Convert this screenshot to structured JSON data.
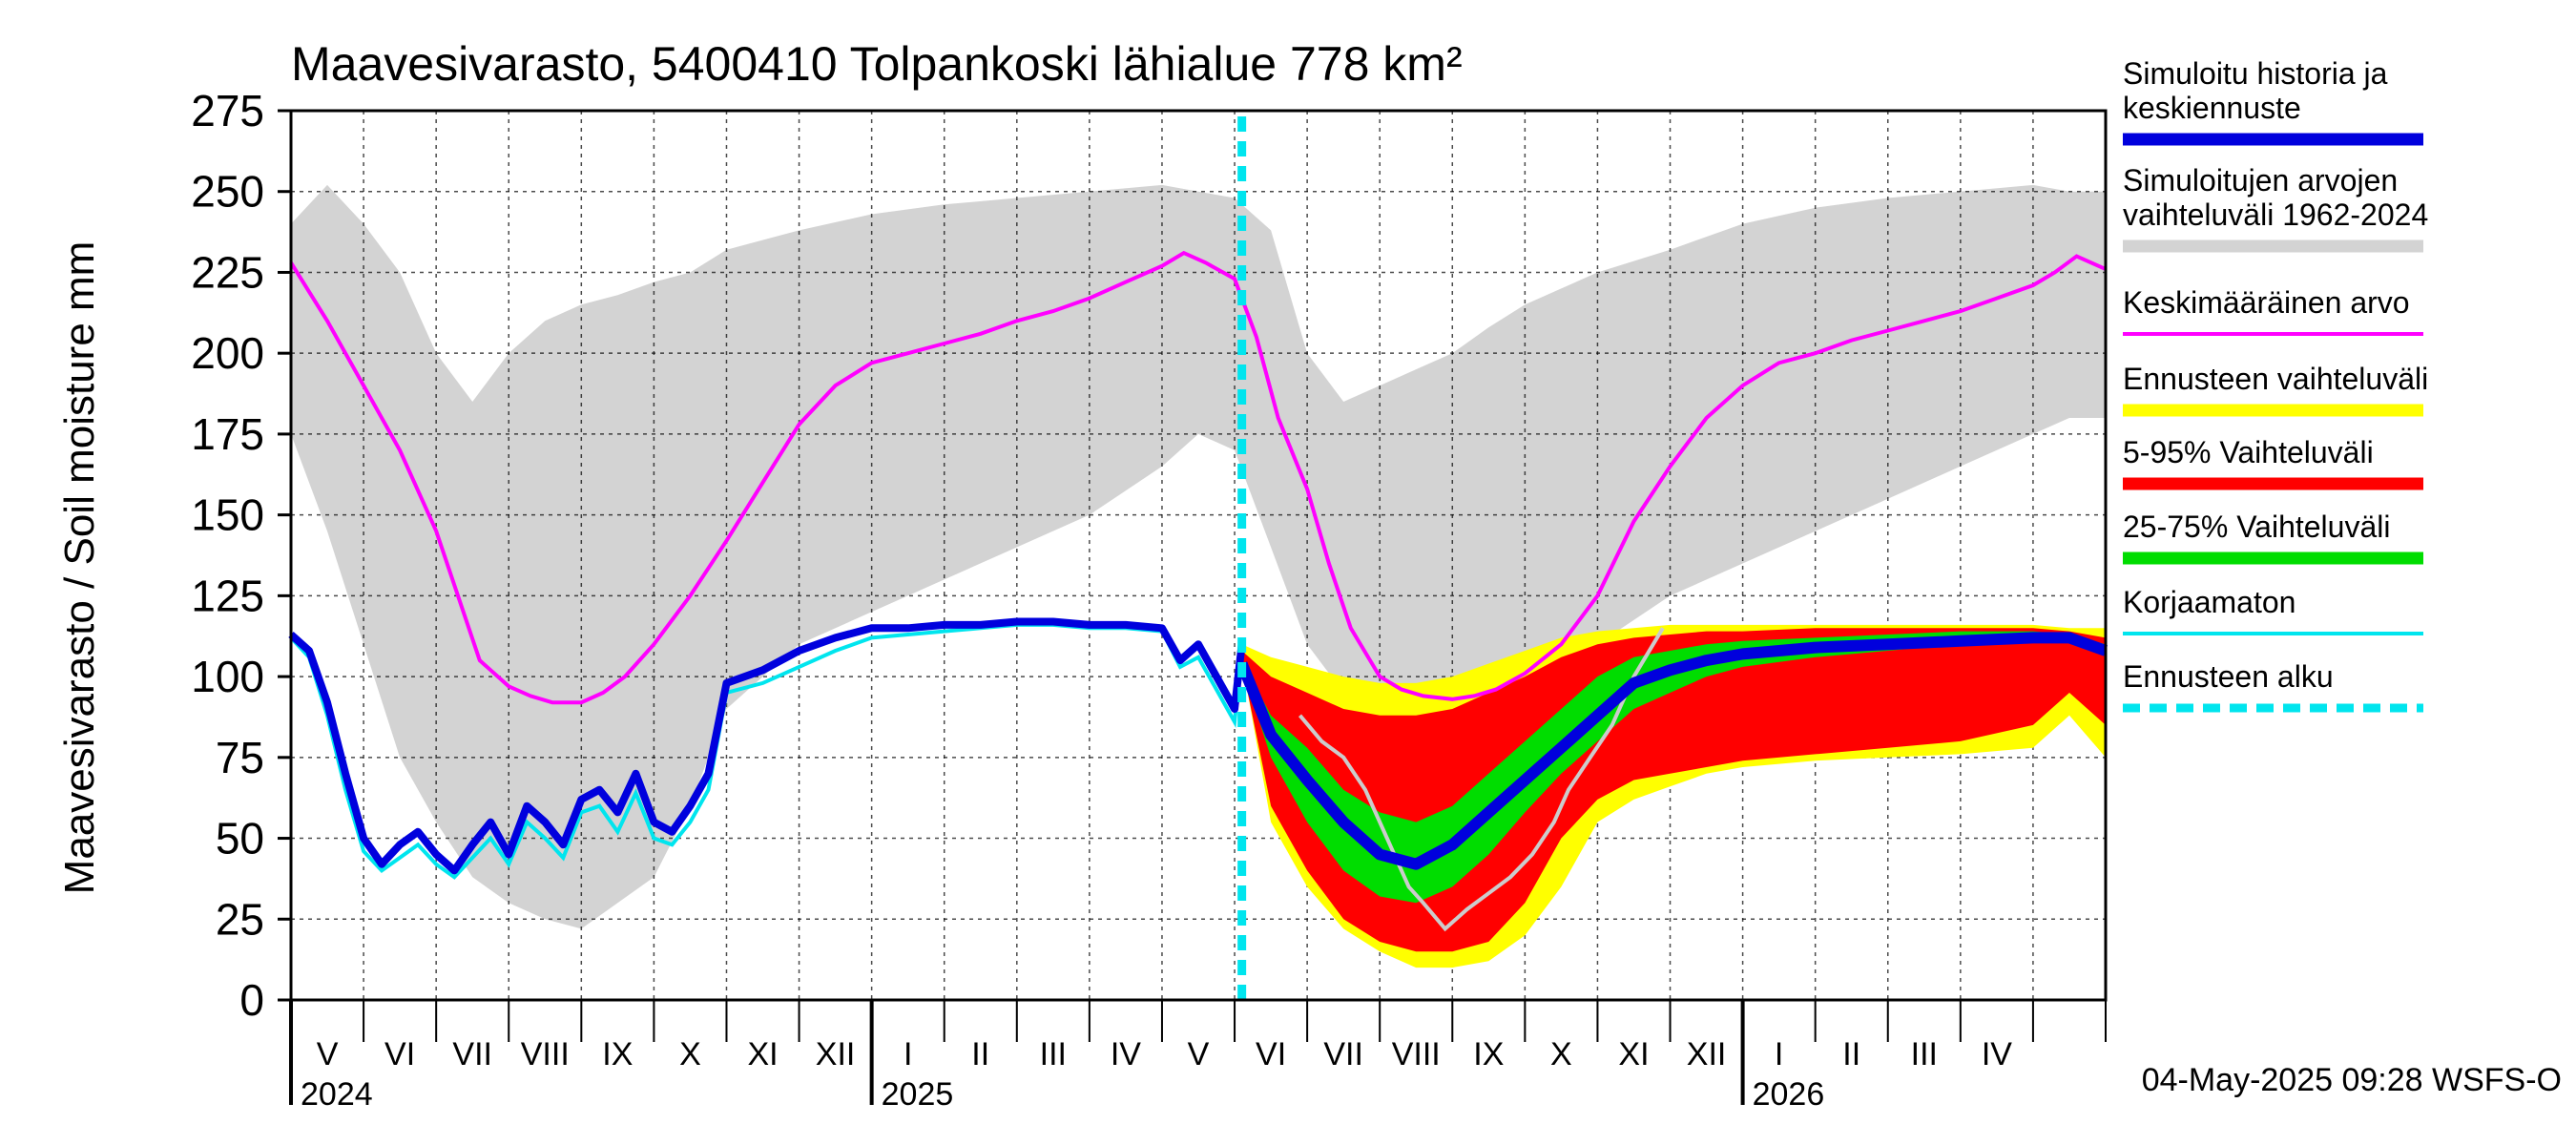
{
  "chart_data": {
    "type": "line",
    "title": "Maavesivarasto, 5400410 Tolpankoski lähialue 778 km²",
    "ylabel": "Maavesivarasto / Soil moisture   mm",
    "xlabel": "",
    "ylim": [
      0,
      275
    ],
    "yticks": [
      0,
      25,
      50,
      75,
      100,
      125,
      150,
      175,
      200,
      225,
      250,
      275
    ],
    "grid": true,
    "x_unit": "months since 2024-04-01",
    "xlim": [
      0,
      25
    ],
    "forecast_start": 13.1,
    "month_labels": [
      "V",
      "VI",
      "VII",
      "VIII",
      "IX",
      "X",
      "XI",
      "XII",
      "I",
      "II",
      "III",
      "IV",
      "V",
      "VI",
      "VII",
      "VIII",
      "IX",
      "X",
      "XI",
      "XII",
      "I",
      "II",
      "III",
      "IV"
    ],
    "month_label_x": [
      0.5,
      1.5,
      2.5,
      3.5,
      4.5,
      5.5,
      6.5,
      7.5,
      8.5,
      9.5,
      10.5,
      11.5,
      12.5,
      13.5,
      14.5,
      15.5,
      16.5,
      17.5,
      18.5,
      19.5,
      20.5,
      21.5,
      22.5,
      23.5
    ],
    "year_labels": [
      {
        "label": "2024",
        "x": 0.0
      },
      {
        "label": "2025",
        "x": 8.0
      },
      {
        "label": "2026",
        "x": 20.0
      }
    ],
    "timestamp": "04-May-2025 09:28 WSFS-O",
    "colors": {
      "history": "#0000dd",
      "range": "#d3d3d3",
      "mean": "#ff00ff",
      "forecast_range": "#ffff00",
      "p5_95": "#ff0000",
      "p25_75": "#00dd00",
      "uncorrected": "#00e5ee",
      "forecast_start": "#00e5ee",
      "grey_line": "#cccccc"
    },
    "series": {
      "range_upper": {
        "x": [
          0,
          0.5,
          1,
          1.5,
          2,
          2.5,
          3,
          3.5,
          4,
          4.5,
          5,
          5.5,
          6,
          7,
          8,
          9,
          10,
          11,
          12,
          12.5,
          13,
          13.5,
          14,
          14.5,
          15,
          15.5,
          16,
          16.5,
          17,
          17.5,
          18,
          19,
          20,
          21,
          22,
          23,
          24,
          24.5,
          25
        ],
        "y": [
          240,
          252,
          240,
          225,
          200,
          185,
          200,
          210,
          215,
          218,
          222,
          225,
          232,
          238,
          243,
          246,
          248,
          250,
          252,
          250,
          248,
          238,
          200,
          185,
          190,
          195,
          200,
          208,
          215,
          220,
          225,
          232,
          240,
          245,
          248,
          250,
          252,
          250,
          250
        ]
      },
      "range_lower": {
        "x": [
          0,
          0.5,
          1,
          1.5,
          2,
          2.5,
          3,
          3.5,
          4,
          4.5,
          5,
          5.5,
          6,
          7,
          8,
          9,
          10,
          11,
          12,
          12.5,
          13,
          13.5,
          14,
          14.5,
          15,
          15.5,
          16,
          16.5,
          17,
          17.5,
          18,
          19,
          20,
          21,
          22,
          23,
          24,
          24.5,
          25
        ],
        "y": [
          175,
          145,
          110,
          75,
          55,
          38,
          30,
          25,
          22,
          30,
          38,
          60,
          90,
          110,
          120,
          130,
          140,
          150,
          165,
          175,
          170,
          140,
          110,
          95,
          90,
          90,
          92,
          95,
          100,
          105,
          110,
          125,
          135,
          145,
          155,
          165,
          175,
          180,
          180
        ]
      },
      "mean": {
        "x": [
          0,
          0.5,
          1,
          1.5,
          2,
          2.3,
          2.6,
          3,
          3.3,
          3.6,
          4,
          4.3,
          4.6,
          5,
          5.5,
          6,
          6.5,
          7,
          7.5,
          8,
          8.5,
          9,
          9.5,
          10,
          10.5,
          11,
          11.5,
          12,
          12.3,
          12.6,
          13,
          13.3,
          13.6,
          14,
          14.3,
          14.6,
          15,
          15.3,
          15.6,
          16,
          16.3,
          16.6,
          17,
          17.5,
          18,
          18.5,
          19,
          19.5,
          20,
          20.5,
          21,
          21.5,
          22,
          22.5,
          23,
          23.5,
          24,
          24.3,
          24.6,
          25
        ],
        "y": [
          228,
          210,
          190,
          170,
          145,
          125,
          105,
          97,
          94,
          92,
          92,
          95,
          100,
          110,
          125,
          142,
          160,
          178,
          190,
          197,
          200,
          203,
          206,
          210,
          213,
          217,
          222,
          227,
          231,
          228,
          223,
          205,
          180,
          158,
          135,
          115,
          100,
          96,
          94,
          93,
          94,
          96,
          101,
          110,
          125,
          148,
          165,
          180,
          190,
          197,
          200,
          204,
          207,
          210,
          213,
          217,
          221,
          225,
          230,
          226
        ]
      },
      "history": {
        "x": [
          0,
          0.25,
          0.5,
          0.75,
          1,
          1.25,
          1.5,
          1.75,
          2,
          2.25,
          2.5,
          2.75,
          3,
          3.25,
          3.5,
          3.75,
          4,
          4.25,
          4.5,
          4.75,
          5,
          5.25,
          5.5,
          5.75,
          6,
          6.5,
          7,
          7.5,
          8,
          8.5,
          9,
          9.5,
          10,
          10.5,
          11,
          11.5,
          12,
          12.25,
          12.5,
          12.75,
          13,
          13.1
        ],
        "y": [
          113,
          108,
          92,
          70,
          50,
          42,
          48,
          52,
          45,
          40,
          48,
          55,
          45,
          60,
          55,
          48,
          62,
          65,
          58,
          70,
          55,
          52,
          60,
          70,
          98,
          102,
          108,
          112,
          115,
          115,
          116,
          116,
          117,
          117,
          116,
          116,
          115,
          105,
          110,
          100,
          90,
          110
        ]
      },
      "uncorrected": {
        "x": [
          0,
          0.25,
          0.5,
          0.75,
          1,
          1.25,
          1.5,
          1.75,
          2,
          2.25,
          2.5,
          2.75,
          3,
          3.25,
          3.5,
          3.75,
          4,
          4.25,
          4.5,
          4.75,
          5,
          5.25,
          5.5,
          5.75,
          6,
          6.5,
          7,
          7.5,
          8,
          8.5,
          9,
          9.5,
          10,
          10.5,
          11,
          11.5,
          12,
          12.25,
          12.5,
          12.75,
          13,
          13.1
        ],
        "y": [
          112,
          106,
          88,
          65,
          46,
          40,
          44,
          48,
          42,
          38,
          44,
          50,
          42,
          55,
          50,
          44,
          58,
          60,
          52,
          64,
          50,
          48,
          55,
          65,
          95,
          98,
          103,
          108,
          112,
          113,
          114,
          115,
          116,
          116,
          115,
          115,
          114,
          103,
          106,
          96,
          86,
          108
        ]
      },
      "forecast_range_upper": {
        "x": [
          13.1,
          13.5,
          14,
          14.5,
          15,
          15.5,
          16,
          16.5,
          17,
          17.5,
          18,
          18.5,
          19,
          19.5,
          20,
          21,
          22,
          23,
          24,
          24.5,
          25
        ],
        "y": [
          110,
          106,
          103,
          100,
          98,
          98,
          100,
          104,
          108,
          112,
          114,
          115,
          116,
          116,
          116,
          116,
          116,
          116,
          116,
          115,
          115
        ]
      },
      "forecast_range_lower": {
        "x": [
          13.1,
          13.5,
          14,
          14.5,
          15,
          15.5,
          16,
          16.5,
          17,
          17.5,
          18,
          18.5,
          19,
          19.5,
          20,
          21,
          22,
          23,
          24,
          24.5,
          25
        ],
        "y": [
          105,
          55,
          35,
          22,
          15,
          10,
          10,
          12,
          20,
          35,
          55,
          62,
          66,
          70,
          72,
          74,
          75,
          76,
          78,
          88,
          75
        ]
      },
      "p95": {
        "x": [
          13.1,
          13.5,
          14,
          14.5,
          15,
          15.5,
          16,
          16.5,
          17,
          17.5,
          18,
          18.5,
          19,
          19.5,
          20,
          21,
          22,
          23,
          24,
          24.5,
          25
        ],
        "y": [
          108,
          100,
          95,
          90,
          88,
          88,
          90,
          95,
          100,
          106,
          110,
          112,
          113,
          114,
          114,
          115,
          115,
          115,
          115,
          114,
          112
        ]
      },
      "p5": {
        "x": [
          13.1,
          13.5,
          14,
          14.5,
          15,
          15.5,
          16,
          16.5,
          17,
          17.5,
          18,
          18.5,
          19,
          19.5,
          20,
          21,
          22,
          23,
          24,
          24.5,
          25
        ],
        "y": [
          104,
          60,
          40,
          25,
          18,
          15,
          15,
          18,
          30,
          50,
          62,
          68,
          70,
          72,
          74,
          76,
          78,
          80,
          85,
          95,
          85
        ]
      },
      "p75": {
        "x": [
          13.1,
          13.5,
          14,
          14.5,
          15,
          15.5,
          16,
          16.5,
          17,
          17.5,
          18,
          18.5,
          19,
          19.5,
          20,
          21,
          22,
          23,
          24,
          24.5,
          25
        ],
        "y": [
          105,
          88,
          78,
          65,
          58,
          55,
          60,
          70,
          80,
          90,
          100,
          106,
          108,
          110,
          111,
          112,
          113,
          114,
          114,
          113,
          110
        ]
      },
      "p25": {
        "x": [
          13.1,
          13.5,
          14,
          14.5,
          15,
          15.5,
          16,
          16.5,
          17,
          17.5,
          18,
          18.5,
          19,
          19.5,
          20,
          21,
          22,
          23,
          24,
          24.5,
          25
        ],
        "y": [
          103,
          75,
          55,
          40,
          32,
          30,
          35,
          45,
          58,
          70,
          80,
          90,
          95,
          100,
          103,
          106,
          108,
          110,
          111,
          111,
          108
        ]
      },
      "median": {
        "x": [
          13.1,
          13.5,
          14,
          14.5,
          15,
          15.5,
          16,
          16.5,
          17,
          17.5,
          18,
          18.5,
          19,
          19.5,
          20,
          21,
          22,
          23,
          24,
          24.5,
          25
        ],
        "y": [
          104,
          82,
          68,
          55,
          45,
          42,
          48,
          58,
          68,
          78,
          88,
          98,
          102,
          105,
          107,
          109,
          110,
          111,
          112,
          112,
          108
        ]
      },
      "grey_line": {
        "x": [
          13.9,
          14.2,
          14.5,
          14.8,
          15.1,
          15.4,
          15.6,
          15.9,
          16.2,
          16.5,
          16.8,
          17.1,
          17.4,
          17.6,
          17.9,
          18.2,
          18.5,
          18.9
        ],
        "y": [
          88,
          80,
          75,
          65,
          50,
          35,
          30,
          22,
          28,
          33,
          38,
          45,
          55,
          65,
          75,
          85,
          100,
          115
        ]
      }
    },
    "legend": [
      {
        "label": "Simuloitu historia ja keskiennuste",
        "lines": [
          "Simuloitu historia ja",
          "keskiennuste"
        ],
        "color": "#0000dd",
        "style": "solid"
      },
      {
        "label": "Simuloitujen arvojen vaihteluväli 1962-2024",
        "lines": [
          "Simuloitujen arvojen",
          "vaihteluväli 1962-2024"
        ],
        "color": "#d3d3d3",
        "style": "solid"
      },
      {
        "label": "Keskimääräinen arvo",
        "lines": [
          "Keskimääräinen arvo"
        ],
        "color": "#ff00ff",
        "style": "thin"
      },
      {
        "label": "Ennusteen vaihteluväli",
        "lines": [
          "Ennusteen vaihteluväli"
        ],
        "color": "#ffff00",
        "style": "solid"
      },
      {
        "label": "5-95% Vaihteluväli",
        "lines": [
          "5-95% Vaihteluväli"
        ],
        "color": "#ff0000",
        "style": "solid"
      },
      {
        "label": "25-75% Vaihteluväli",
        "lines": [
          "25-75% Vaihteluväli"
        ],
        "color": "#00dd00",
        "style": "solid"
      },
      {
        "label": "Korjaamaton",
        "lines": [
          "Korjaamaton"
        ],
        "color": "#00e5ee",
        "style": "thin"
      },
      {
        "label": "Ennusteen alku",
        "lines": [
          "Ennusteen alku"
        ],
        "color": "#00e5ee",
        "style": "dashed"
      }
    ]
  }
}
